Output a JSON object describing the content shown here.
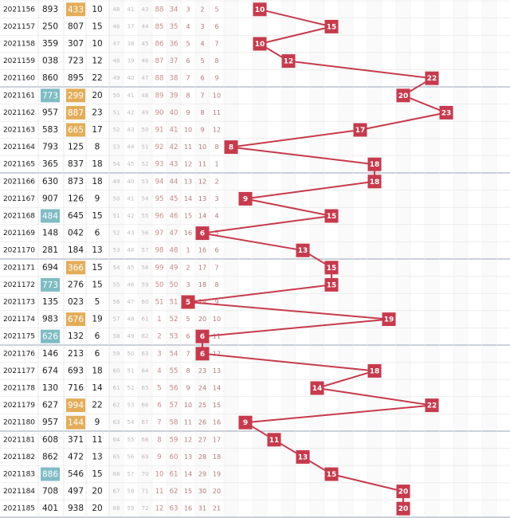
{
  "colors": {
    "accent_line": "#c73a4c",
    "ball_fill": "#c73a4c",
    "badge_teal": "#7fbcc4",
    "badge_orange": "#e3ad58",
    "grid": "#e3e3e3",
    "group_divider": "#9aa3b6"
  },
  "chart_data": {
    "type": "line",
    "rows": [
      {
        "period": "2021156",
        "n1": "893",
        "n2": "433",
        "sum": 10,
        "hl": "n2",
        "cells": [
          48,
          41,
          43,
          88,
          34,
          3,
          2,
          5
        ]
      },
      {
        "period": "2021157",
        "n1": "250",
        "n2": "807",
        "sum": 15,
        "hl": "",
        "cells": [
          46,
          37,
          44,
          85,
          35,
          4,
          3,
          6
        ]
      },
      {
        "period": "2021158",
        "n1": "359",
        "n2": "307",
        "sum": 10,
        "hl": "",
        "cells": [
          47,
          38,
          45,
          86,
          36,
          5,
          4,
          7
        ]
      },
      {
        "period": "2021159",
        "n1": "038",
        "n2": "723",
        "sum": 12,
        "hl": "",
        "cells": [
          48,
          39,
          46,
          87,
          37,
          6,
          5,
          8
        ]
      },
      {
        "period": "2021160",
        "n1": "860",
        "n2": "895",
        "sum": 22,
        "hl": "",
        "cells": [
          49,
          40,
          47,
          88,
          38,
          7,
          6,
          9
        ]
      },
      {
        "period": "2021161",
        "n1": "773",
        "n2": "299",
        "sum": 20,
        "hl": "both",
        "cells": [
          50,
          41,
          48,
          89,
          39,
          8,
          7,
          10
        ]
      },
      {
        "period": "2021162",
        "n1": "957",
        "n2": "887",
        "sum": 23,
        "hl": "n2",
        "cells": [
          51,
          42,
          49,
          90,
          40,
          9,
          8,
          11
        ]
      },
      {
        "period": "2021163",
        "n1": "583",
        "n2": "665",
        "sum": 17,
        "hl": "n2",
        "cells": [
          52,
          43,
          50,
          91,
          41,
          10,
          9,
          12
        ]
      },
      {
        "period": "2021164",
        "n1": "793",
        "n2": "125",
        "sum": 8,
        "hl": "",
        "cells": [
          53,
          44,
          51,
          92,
          42,
          11,
          10,
          8
        ]
      },
      {
        "period": "2021165",
        "n1": "365",
        "n2": "837",
        "sum": 18,
        "hl": "",
        "cells": [
          54,
          45,
          52,
          93,
          43,
          12,
          11,
          1
        ]
      },
      {
        "period": "2021166",
        "n1": "630",
        "n2": "873",
        "sum": 18,
        "hl": "",
        "cells": [
          49,
          40,
          53,
          94,
          44,
          13,
          12,
          2
        ]
      },
      {
        "period": "2021167",
        "n1": "907",
        "n2": "126",
        "sum": 9,
        "hl": "",
        "cells": [
          50,
          41,
          54,
          95,
          45,
          14,
          13,
          3
        ]
      },
      {
        "period": "2021168",
        "n1": "484",
        "n2": "645",
        "sum": 15,
        "hl": "n1",
        "cells": [
          51,
          42,
          55,
          96,
          46,
          15,
          14,
          4
        ]
      },
      {
        "period": "2021169",
        "n1": "148",
        "n2": "042",
        "sum": 6,
        "hl": "",
        "cells": [
          52,
          43,
          56,
          97,
          47,
          16,
          15,
          5
        ]
      },
      {
        "period": "2021170",
        "n1": "281",
        "n2": "184",
        "sum": 13,
        "hl": "",
        "cells": [
          53,
          44,
          57,
          98,
          48,
          1,
          16,
          6
        ]
      },
      {
        "period": "2021171",
        "n1": "694",
        "n2": "366",
        "sum": 15,
        "hl": "n2",
        "cells": [
          54,
          45,
          58,
          99,
          49,
          2,
          17,
          7
        ]
      },
      {
        "period": "2021172",
        "n1": "773",
        "n2": "276",
        "sum": 15,
        "hl": "n1",
        "cells": [
          55,
          46,
          59,
          50,
          50,
          3,
          18,
          8
        ]
      },
      {
        "period": "2021173",
        "n1": "135",
        "n2": "023",
        "sum": 5,
        "hl": "",
        "cells": [
          56,
          47,
          60,
          51,
          51,
          4,
          19,
          9
        ]
      },
      {
        "period": "2021174",
        "n1": "983",
        "n2": "676",
        "sum": 19,
        "hl": "n2",
        "cells": [
          57,
          48,
          61,
          1,
          52,
          5,
          20,
          10
        ]
      },
      {
        "period": "2021175",
        "n1": "626",
        "n2": "132",
        "sum": 6,
        "hl": "n1",
        "cells": [
          58,
          49,
          62,
          2,
          53,
          6,
          21,
          11
        ]
      },
      {
        "period": "2021176",
        "n1": "146",
        "n2": "213",
        "sum": 6,
        "hl": "",
        "cells": [
          59,
          50,
          63,
          3,
          54,
          7,
          22,
          12
        ]
      },
      {
        "period": "2021177",
        "n1": "674",
        "n2": "693",
        "sum": 18,
        "hl": "",
        "cells": [
          60,
          51,
          64,
          4,
          55,
          8,
          23,
          13
        ]
      },
      {
        "period": "2021178",
        "n1": "130",
        "n2": "716",
        "sum": 14,
        "hl": "",
        "cells": [
          61,
          52,
          65,
          5,
          56,
          9,
          24,
          14
        ]
      },
      {
        "period": "2021179",
        "n1": "627",
        "n2": "994",
        "sum": 22,
        "hl": "n2",
        "cells": [
          62,
          53,
          66,
          6,
          57,
          10,
          25,
          15
        ]
      },
      {
        "period": "2021180",
        "n1": "957",
        "n2": "144",
        "sum": 9,
        "hl": "n2",
        "cells": [
          63,
          54,
          67,
          7,
          58,
          11,
          26,
          16
        ]
      },
      {
        "period": "2021181",
        "n1": "608",
        "n2": "371",
        "sum": 11,
        "hl": "",
        "cells": [
          64,
          55,
          68,
          8,
          59,
          12,
          27,
          17
        ]
      },
      {
        "period": "2021182",
        "n1": "862",
        "n2": "472",
        "sum": 13,
        "hl": "",
        "cells": [
          65,
          56,
          69,
          9,
          60,
          13,
          28,
          18
        ]
      },
      {
        "period": "2021183",
        "n1": "886",
        "n2": "546",
        "sum": 15,
        "hl": "n1",
        "cells": [
          66,
          57,
          70,
          10,
          61,
          14,
          29,
          19
        ]
      },
      {
        "period": "2021184",
        "n1": "708",
        "n2": "497",
        "sum": 20,
        "hl": "",
        "cells": [
          67,
          58,
          71,
          11,
          62,
          15,
          30,
          20
        ]
      },
      {
        "period": "2021185",
        "n1": "401",
        "n2": "938",
        "sum": 20,
        "hl": "",
        "cells": [
          68,
          59,
          72,
          12,
          63,
          16,
          31,
          21
        ]
      }
    ]
  }
}
